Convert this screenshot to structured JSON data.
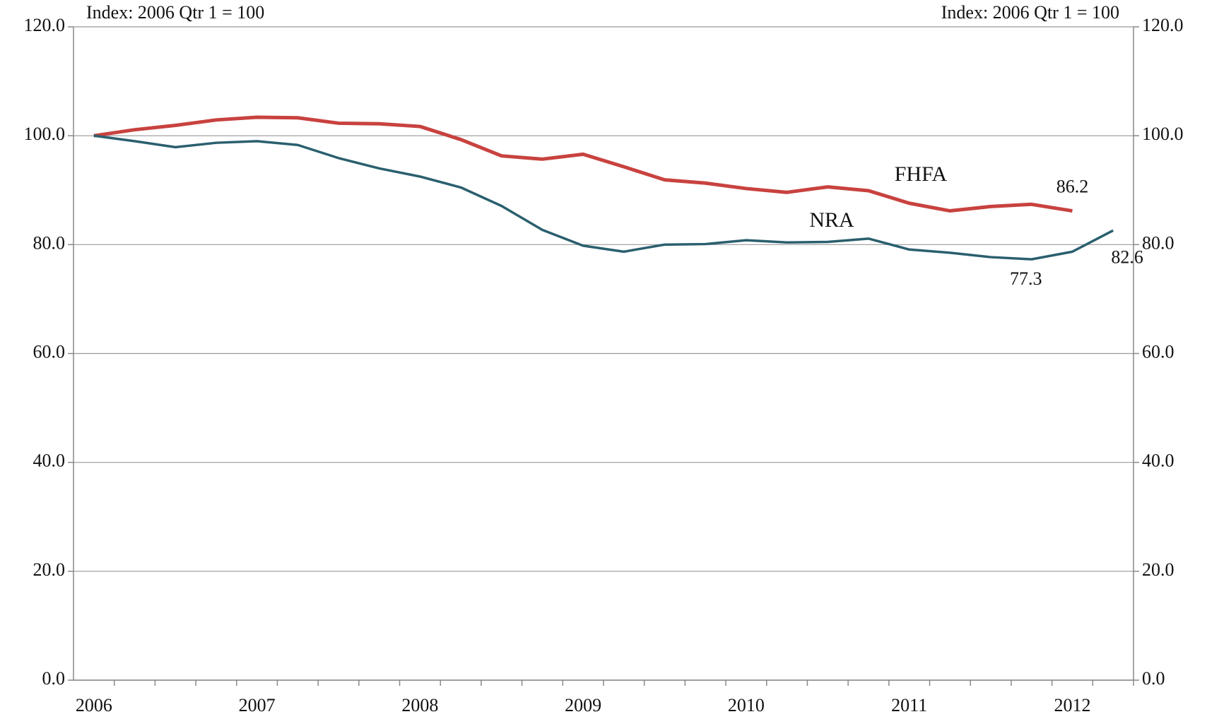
{
  "chart_data": {
    "type": "line",
    "y_title": "Index: 2006 Qtr 1 = 100",
    "y2_title": "Index: 2006 Qtr 1 = 100",
    "categories": [
      "2006",
      null,
      null,
      null,
      "2007",
      null,
      null,
      null,
      "2008",
      null,
      null,
      null,
      "2009",
      null,
      null,
      null,
      "2010",
      null,
      null,
      null,
      "2011",
      null,
      null,
      null,
      "2012",
      null
    ],
    "series": [
      {
        "name": "FHFA",
        "color": "#c8423f",
        "values": [
          100,
          101.1,
          101.9,
          102.9,
          103.4,
          103.3,
          102.3,
          102.2,
          101.7,
          99.3,
          96.3,
          95.7,
          96.6,
          94.3,
          91.9,
          91.3,
          90.3,
          89.6,
          90.6,
          89.9,
          87.6,
          86.2,
          87.0,
          87.4,
          86.2,
          null
        ],
        "value_labels": [
          null,
          null,
          null,
          null,
          null,
          null,
          null,
          null,
          null,
          null,
          null,
          null,
          null,
          null,
          null,
          null,
          null,
          null,
          null,
          null,
          null,
          null,
          null,
          null,
          "86.2",
          null
        ]
      },
      {
        "name": "NRA",
        "color": "#2a5f6e",
        "values": [
          100,
          99.0,
          97.9,
          98.7,
          99.0,
          98.3,
          95.9,
          94.0,
          92.5,
          90.5,
          87.1,
          82.7,
          79.8,
          78.7,
          80.0,
          80.1,
          80.8,
          80.4,
          80.5,
          81.1,
          79.1,
          78.5,
          77.7,
          77.3,
          78.7,
          82.6
        ],
        "value_labels": [
          null,
          null,
          null,
          null,
          null,
          null,
          null,
          null,
          null,
          null,
          null,
          null,
          null,
          null,
          null,
          null,
          null,
          null,
          null,
          null,
          null,
          null,
          null,
          "77.3",
          null,
          "82.6"
        ]
      }
    ],
    "ylim": [
      0,
      120
    ],
    "yticks": [
      {
        "value": 0,
        "label": "0.0"
      },
      {
        "value": 20,
        "label": "20.0"
      },
      {
        "value": 40,
        "label": "40.0"
      },
      {
        "value": 60,
        "label": "60.0"
      },
      {
        "value": 80,
        "label": "80.0"
      },
      {
        "value": 100,
        "label": "100.0"
      },
      {
        "value": 120,
        "label": "120.0"
      }
    ],
    "y2lim": [
      0,
      120
    ],
    "y2ticks": [
      {
        "value": 0,
        "label": "0.0"
      },
      {
        "value": 20,
        "label": "20.0"
      },
      {
        "value": 40,
        "label": "40.0"
      },
      {
        "value": 60,
        "label": "60.0"
      },
      {
        "value": 80,
        "label": "80.0"
      },
      {
        "value": 100,
        "label": "100.0"
      },
      {
        "value": 120,
        "label": "120.0"
      }
    ],
    "grid": true
  }
}
